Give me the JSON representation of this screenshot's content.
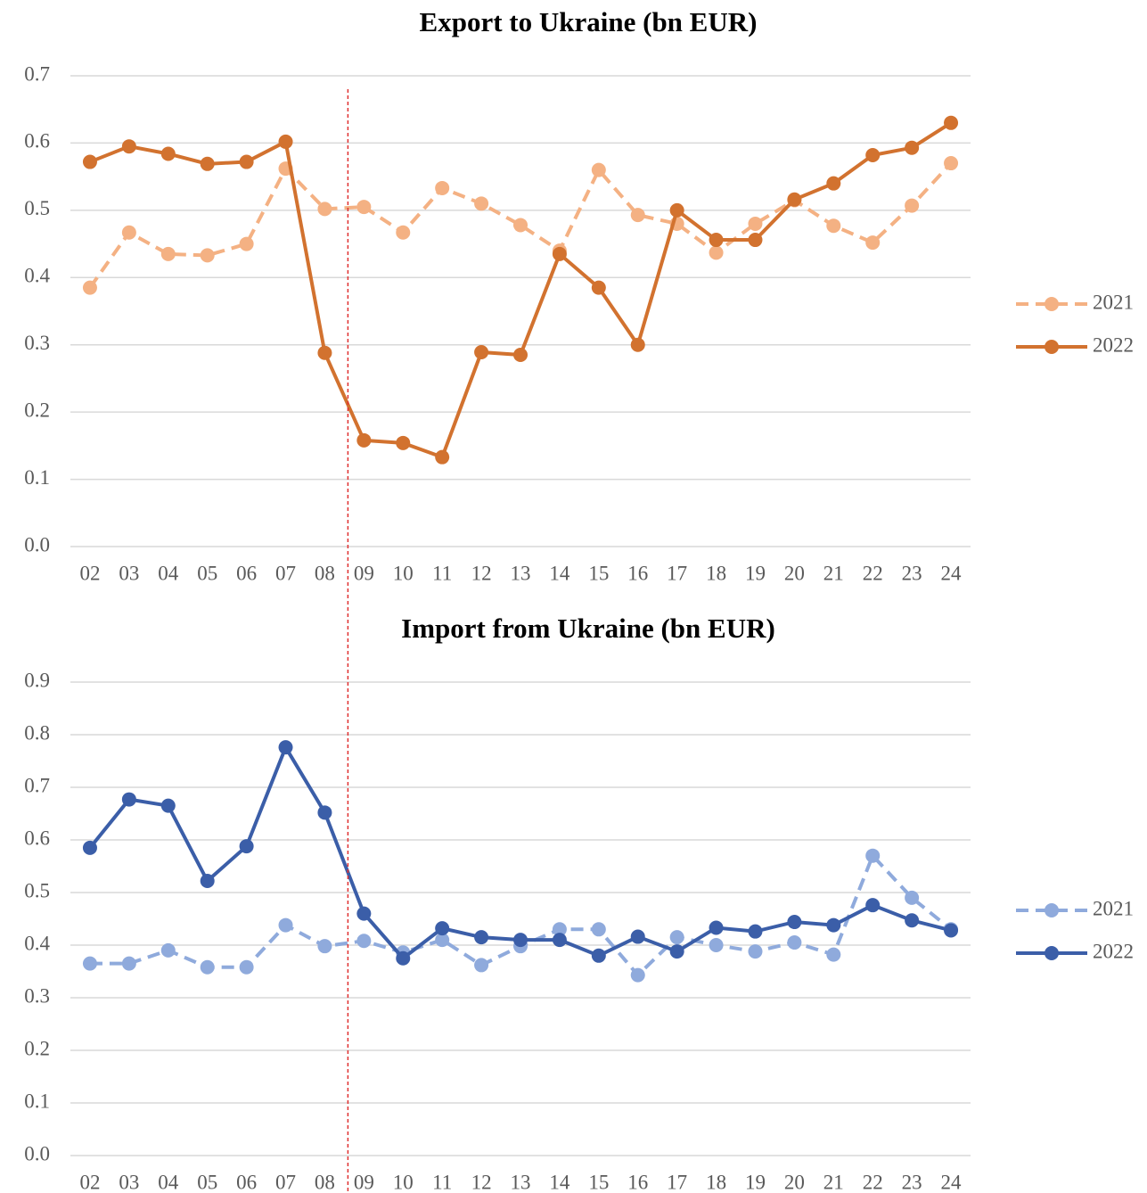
{
  "chart_data": [
    {
      "type": "line",
      "title": "Export to Ukraine (bn EUR)",
      "categories": [
        "02",
        "03",
        "04",
        "05",
        "06",
        "07",
        "08",
        "09",
        "10",
        "11",
        "12",
        "13",
        "14",
        "15",
        "16",
        "17",
        "18",
        "19",
        "20",
        "21",
        "22",
        "23",
        "24"
      ],
      "series": [
        {
          "name": "2021",
          "color": "#f4b183",
          "style": "dashed",
          "values": [
            0.385,
            0.467,
            0.435,
            0.433,
            0.45,
            0.562,
            0.502,
            0.505,
            0.467,
            0.533,
            0.51,
            0.478,
            0.44,
            0.56,
            0.493,
            0.48,
            0.437,
            0.48,
            0.515,
            0.477,
            0.452,
            0.507,
            0.57
          ]
        },
        {
          "name": "2022",
          "color": "#d2722f",
          "style": "solid",
          "values": [
            0.572,
            0.595,
            0.584,
            0.569,
            0.572,
            0.602,
            0.288,
            0.158,
            0.154,
            0.133,
            0.289,
            0.285,
            0.435,
            0.385,
            0.3,
            0.5,
            0.456,
            0.456,
            0.516,
            0.54,
            0.582,
            0.593,
            0.63
          ]
        }
      ],
      "ylim": [
        0,
        0.7
      ],
      "yticks": [
        {
          "value": 0,
          "label": "0.0"
        },
        0.1,
        0.2,
        0.3,
        0.4,
        0.5,
        0.6,
        0.7
      ],
      "grid": true,
      "legend": "right"
    },
    {
      "type": "line",
      "title": "Import from Ukraine (bn EUR)",
      "categories": [
        "02",
        "03",
        "04",
        "05",
        "06",
        "07",
        "08",
        "09",
        "10",
        "11",
        "12",
        "13",
        "14",
        "15",
        "16",
        "17",
        "18",
        "19",
        "20",
        "21",
        "22",
        "23",
        "24"
      ],
      "series": [
        {
          "name": "2021",
          "color": "#8faadc",
          "style": "dashed",
          "values": [
            0.365,
            0.365,
            0.39,
            0.358,
            0.358,
            0.438,
            0.398,
            0.408,
            0.386,
            0.41,
            0.362,
            0.398,
            0.43,
            0.43,
            0.343,
            0.415,
            0.4,
            0.388,
            0.405,
            0.382,
            0.57,
            0.49,
            0.43
          ]
        },
        {
          "name": "2022",
          "color": "#3b5ea8",
          "style": "solid",
          "values": [
            0.585,
            0.677,
            0.665,
            0.522,
            0.588,
            0.776,
            0.652,
            0.46,
            0.375,
            0.432,
            0.415,
            0.41,
            0.41,
            0.38,
            0.416,
            0.388,
            0.433,
            0.426,
            0.444,
            0.438,
            0.476,
            0.447,
            0.428
          ]
        }
      ],
      "ylim": [
        0,
        0.9
      ],
      "yticks": [
        {
          "value": 0,
          "label": "0.0"
        },
        0.1,
        0.2,
        0.3,
        0.4,
        0.5,
        0.6,
        0.7,
        0.8,
        0.9
      ],
      "grid": true,
      "legend": "right"
    }
  ]
}
